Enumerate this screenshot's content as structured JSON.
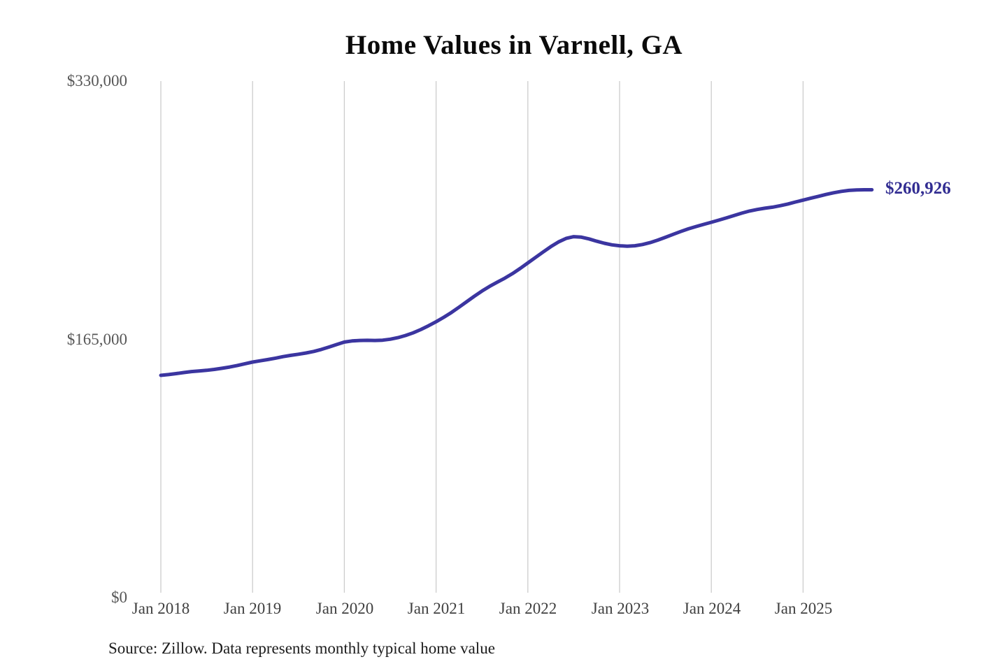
{
  "chart": {
    "title": "Home Values in Varnell, GA"
  },
  "footer": {
    "source": "Source: Zillow. Data represents monthly typical home value"
  },
  "chart_data": {
    "type": "line",
    "title": "Home Values in Varnell, GA",
    "xlabel": "",
    "ylabel": "",
    "ylim": [
      0,
      330000
    ],
    "grid": "vertical-only",
    "legend": "none",
    "line_color": "#3b35a0",
    "grid_color": "#cdcdcd",
    "label_color": "#322d92",
    "end_label": "$260,926",
    "end_value": 260926,
    "y_tick_values": [
      0,
      165000,
      330000
    ],
    "y_tick_labels": [
      "$0",
      "$165,000",
      "$330,000"
    ],
    "x_tick_labels": [
      "Jan 2018",
      "Jan 2019",
      "Jan 2020",
      "Jan 2021",
      "Jan 2022",
      "Jan 2023",
      "Jan 2024",
      "Jan 2025"
    ],
    "frequency": "monthly",
    "x": [
      "2018-01",
      "2018-02",
      "2018-03",
      "2018-04",
      "2018-05",
      "2018-06",
      "2018-07",
      "2018-08",
      "2018-09",
      "2018-10",
      "2018-11",
      "2018-12",
      "2019-01",
      "2019-02",
      "2019-03",
      "2019-04",
      "2019-05",
      "2019-06",
      "2019-07",
      "2019-08",
      "2019-09",
      "2019-10",
      "2019-11",
      "2019-12",
      "2020-01",
      "2020-02",
      "2020-03",
      "2020-04",
      "2020-05",
      "2020-06",
      "2020-07",
      "2020-08",
      "2020-09",
      "2020-10",
      "2020-11",
      "2020-12",
      "2021-01",
      "2021-02",
      "2021-03",
      "2021-04",
      "2021-05",
      "2021-06",
      "2021-07",
      "2021-08",
      "2021-09",
      "2021-10",
      "2021-11",
      "2021-12",
      "2022-01",
      "2022-02",
      "2022-03",
      "2022-04",
      "2022-05",
      "2022-06",
      "2022-07",
      "2022-08",
      "2022-09",
      "2022-10",
      "2022-11",
      "2022-12",
      "2023-01",
      "2023-02",
      "2023-03",
      "2023-04",
      "2023-05",
      "2023-06",
      "2023-07",
      "2023-08",
      "2023-09",
      "2023-10",
      "2023-11",
      "2023-12",
      "2024-01",
      "2024-02",
      "2024-03",
      "2024-04",
      "2024-05",
      "2024-06",
      "2024-07",
      "2024-08",
      "2024-09",
      "2024-10",
      "2024-11",
      "2024-12",
      "2025-01",
      "2025-02",
      "2025-03",
      "2025-04",
      "2025-05",
      "2025-06",
      "2025-07",
      "2025-08",
      "2025-09",
      "2025-10"
    ],
    "values": [
      142200,
      142700,
      143300,
      144000,
      144600,
      145000,
      145400,
      146000,
      146700,
      147500,
      148500,
      149600,
      150700,
      151500,
      152300,
      153200,
      154200,
      155000,
      155700,
      156500,
      157500,
      158800,
      160300,
      161900,
      163500,
      164200,
      164500,
      164600,
      164500,
      164700,
      165300,
      166300,
      167700,
      169400,
      171500,
      173900,
      176500,
      179300,
      182400,
      185800,
      189300,
      192800,
      196100,
      199100,
      201800,
      204400,
      207300,
      210600,
      214100,
      217600,
      221100,
      224500,
      227500,
      229800,
      230900,
      230600,
      229500,
      228000,
      226700,
      225700,
      225100,
      224800,
      225100,
      225900,
      227100,
      228700,
      230500,
      232400,
      234200,
      235900,
      237400,
      238800,
      240100,
      241500,
      243000,
      244500,
      246000,
      247300,
      248300,
      249100,
      249800,
      250700,
      251800,
      253100,
      254300,
      255500,
      256700,
      257900,
      259000,
      259900,
      260500,
      260800,
      260900,
      260926
    ]
  }
}
